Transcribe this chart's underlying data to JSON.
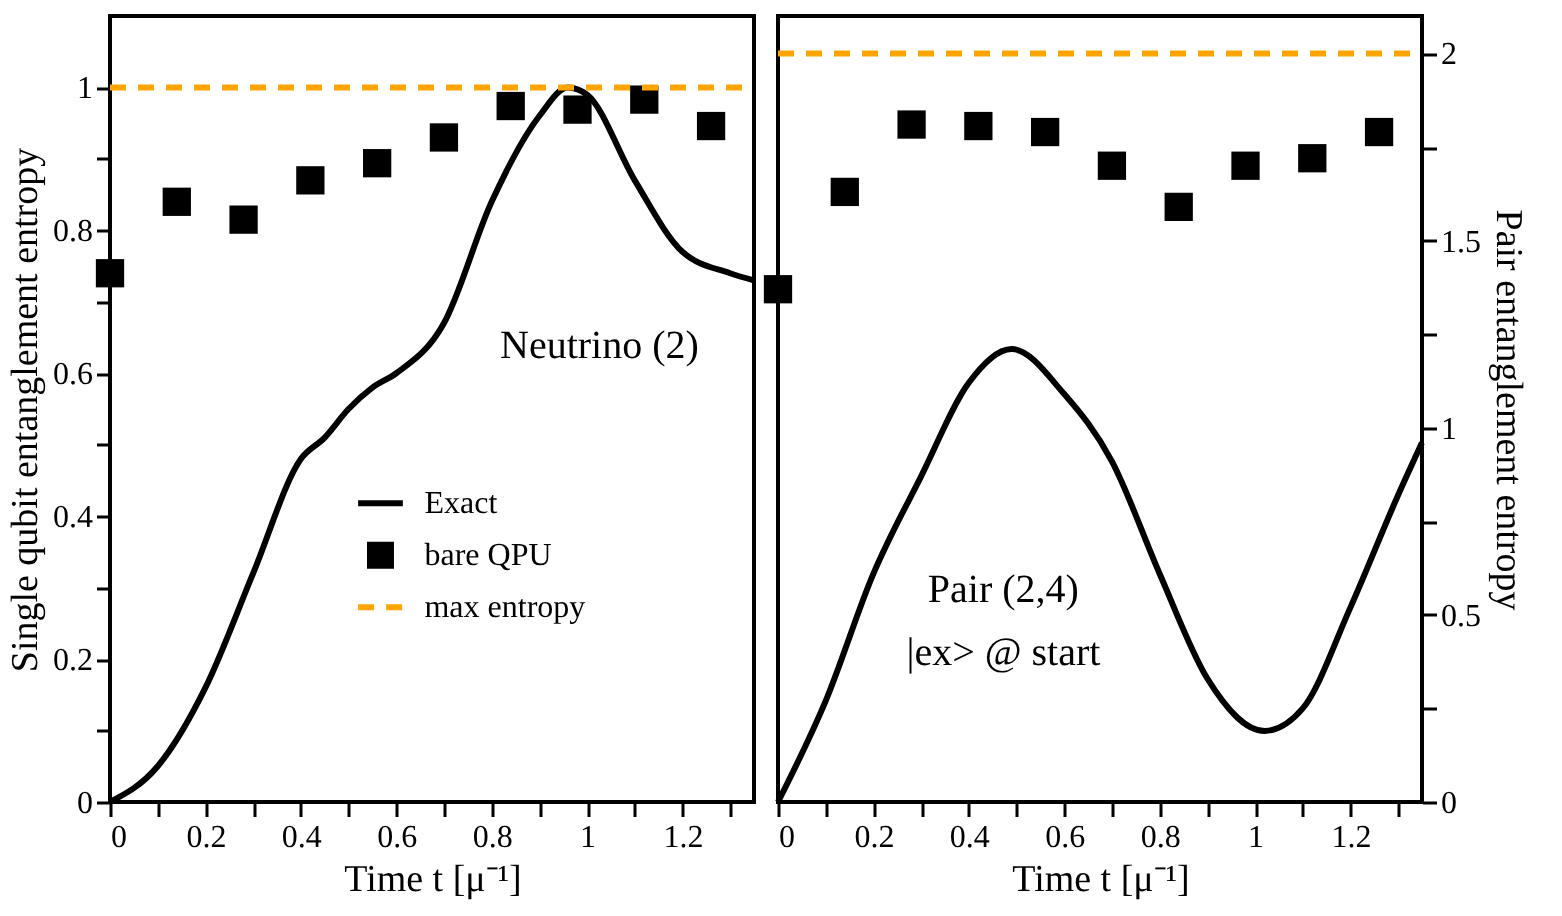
{
  "chart_data": [
    {
      "type": "line",
      "xlabel": "Time t [μ⁻¹]",
      "ylabel": "Single qubit entanglement entropy",
      "xlim": [
        0,
        1.35
      ],
      "ylim": [
        0,
        1.1
      ],
      "xticks": [
        0,
        {
          "value": 0.1,
          "label": null
        },
        0.2,
        {
          "value": 0.3,
          "label": null
        },
        0.4,
        {
          "value": 0.5,
          "label": null
        },
        0.6,
        {
          "value": 0.7,
          "label": null
        },
        0.8,
        {
          "value": 0.9,
          "label": null
        },
        1,
        {
          "value": 1.1,
          "label": null
        },
        1.2,
        {
          "value": 1.3,
          "label": null
        }
      ],
      "yticks": [
        0,
        {
          "value": 0.1,
          "label": null
        },
        0.2,
        {
          "value": 0.3,
          "label": null
        },
        0.4,
        {
          "value": 0.5,
          "label": null
        },
        0.6,
        {
          "value": 0.7,
          "label": null
        },
        0.8,
        {
          "value": 0.9,
          "label": null
        },
        1
      ],
      "legend": "bottom",
      "annotations": [
        "Neutrino (2)"
      ],
      "series": [
        {
          "name": "Exact",
          "type": "line",
          "color": "#000000",
          "line_style": "solid",
          "x": [
            0,
            0.1,
            0.2,
            0.3,
            0.4,
            0.45,
            0.5,
            0.55,
            0.6,
            0.7,
            0.8,
            0.9,
            0.96,
            1.0,
            1.1,
            1.2,
            1.3,
            1.35
          ],
          "values": [
            0,
            0.05,
            0.16,
            0.32,
            0.48,
            0.51,
            0.55,
            0.58,
            0.6,
            0.67,
            0.84,
            0.96,
            1.0,
            0.99,
            0.87,
            0.77,
            0.74,
            0.73
          ]
        },
        {
          "name": "bare QPU",
          "type": "scatter",
          "marker": "square",
          "color": "#000000",
          "x": [
            0,
            0.14,
            0.28,
            0.42,
            0.56,
            0.7,
            0.84,
            0.98,
            1.12,
            1.26
          ],
          "values": [
            0.74,
            0.84,
            0.815,
            0.87,
            0.894,
            0.93,
            0.974,
            0.969,
            0.983,
            0.946
          ]
        },
        {
          "name": "max entropy",
          "type": "line",
          "color": "#ffa500",
          "line_style": "dashed",
          "x": [
            0,
            1.35
          ],
          "values": [
            1,
            1
          ]
        }
      ]
    },
    {
      "type": "line",
      "xlabel": "Time t [μ⁻¹]",
      "y2label": "Pair entanglement entropy",
      "xlim": [
        0,
        1.35
      ],
      "y2lim": [
        0,
        2.1
      ],
      "xticks": [
        0,
        {
          "value": 0.1,
          "label": null
        },
        0.2,
        {
          "value": 0.3,
          "label": null
        },
        0.4,
        {
          "value": 0.5,
          "label": null
        },
        0.6,
        {
          "value": 0.7,
          "label": null
        },
        0.8,
        {
          "value": 0.9,
          "label": null
        },
        1,
        {
          "value": 1.1,
          "label": null
        },
        1.2,
        {
          "value": 1.3,
          "label": null
        }
      ],
      "y2ticks": [
        0,
        {
          "value": 0.25,
          "label": null
        },
        0.5,
        {
          "value": 0.75,
          "label": null
        },
        1,
        {
          "value": 1.25,
          "label": null
        },
        1.5,
        {
          "value": 1.75,
          "label": null
        },
        2
      ],
      "annotations": [
        "Pair (2,4)",
        "|ex> @ start"
      ],
      "series": [
        {
          "type": "line",
          "axis": "y2",
          "color": "#000000",
          "line_style": "solid",
          "x": [
            0,
            0.1,
            0.2,
            0.3,
            0.4,
            0.49,
            0.6,
            0.7,
            0.8,
            0.9,
            1.02,
            1.1,
            1.2,
            1.3,
            1.35
          ],
          "values": [
            0,
            0.27,
            0.61,
            0.87,
            1.12,
            1.21,
            1.09,
            0.91,
            0.61,
            0.33,
            0.19,
            0.25,
            0.52,
            0.82,
            0.96
          ]
        },
        {
          "type": "scatter",
          "axis": "y2",
          "marker": "square",
          "color": "#000000",
          "x": [
            0,
            0.14,
            0.28,
            0.42,
            0.56,
            0.7,
            0.84,
            0.98,
            1.12,
            1.26
          ],
          "values": [
            1.37,
            1.63,
            1.81,
            1.806,
            1.79,
            1.7,
            1.59,
            1.7,
            1.72,
            1.79
          ]
        },
        {
          "type": "line",
          "axis": "y2",
          "color": "#ffa500",
          "line_style": "dashed",
          "x": [
            0,
            1.35
          ],
          "values": [
            2,
            2
          ]
        }
      ]
    }
  ]
}
